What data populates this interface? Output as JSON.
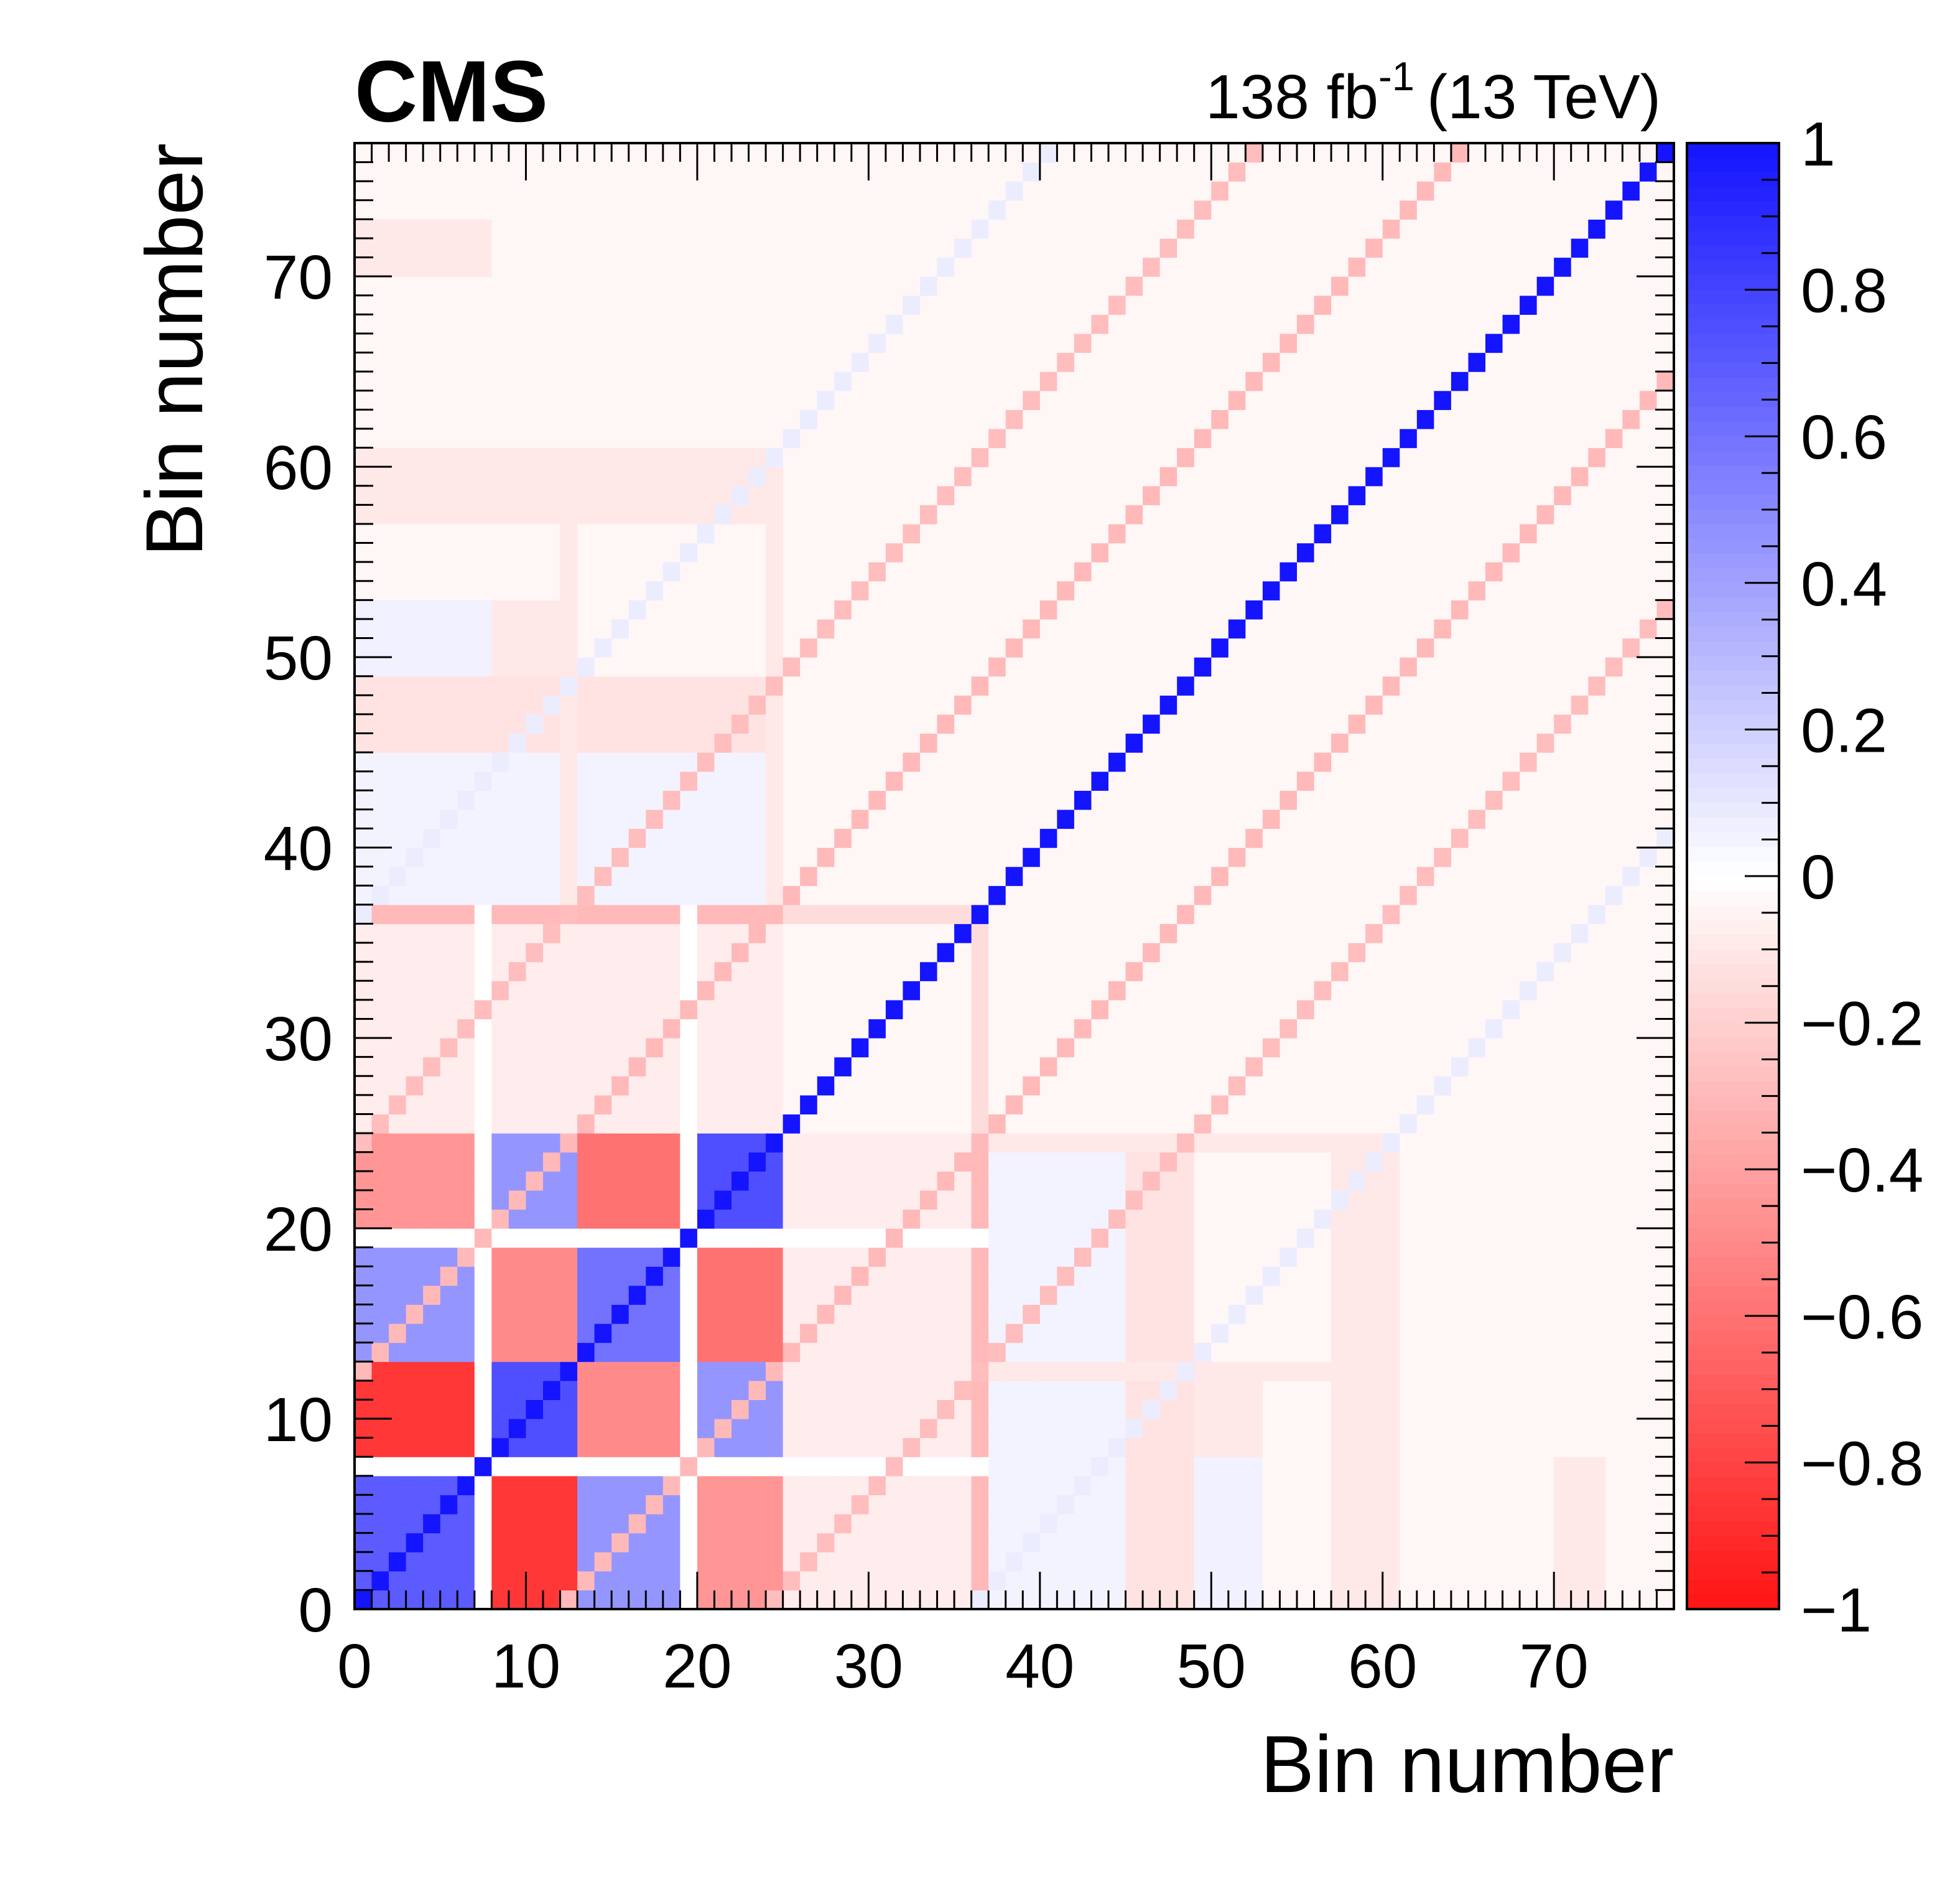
{
  "header": {
    "experiment": "CMS",
    "lumi_value": "138 fb",
    "lumi_exponent": "-1",
    "energy": "(13 TeV)"
  },
  "chart_data": {
    "type": "heatmap",
    "title": "",
    "xlabel": "Bin number",
    "ylabel": "Bin number",
    "xlim": [
      0,
      77
    ],
    "ylim": [
      0,
      77
    ],
    "nbins": 77,
    "x_ticks": [
      "0",
      "10",
      "20",
      "30",
      "40",
      "50",
      "60",
      "70"
    ],
    "y_ticks": [
      "0",
      "10",
      "20",
      "30",
      "40",
      "50",
      "60",
      "70"
    ],
    "zlim": [
      -1,
      1
    ],
    "colorbar_ticks": [
      "1",
      "0.8",
      "0.6",
      "0.4",
      "0.2",
      "0",
      "−0.2",
      "−0.4",
      "−0.6",
      "−0.8",
      "−1"
    ],
    "colorbar_tick_values": [
      1,
      0.8,
      0.6,
      0.4,
      0.2,
      0,
      -0.2,
      -0.4,
      -0.6,
      -0.8,
      -1
    ],
    "colors": {
      "positive": "#1414ff",
      "negative": "#ff1414",
      "zero": "#ffffff"
    },
    "description": "Symmetric correlation matrix; diagonal = 1; block structure in bins 0-36; anti-correlation stripes at |i-j| = 12 and 24.",
    "block_edges": [
      0,
      7,
      8,
      12,
      13,
      19,
      20,
      24,
      25,
      35,
      36,
      45,
      48,
      60,
      61,
      72,
      77
    ],
    "default_correlation": -0.04,
    "blocks": [
      {
        "x": [
          0,
          7
        ],
        "y": [
          0,
          7
        ],
        "value": 0.7
      },
      {
        "x": [
          8,
          12
        ],
        "y": [
          8,
          12
        ],
        "value": 0.75
      },
      {
        "x": [
          13,
          19
        ],
        "y": [
          13,
          19
        ],
        "value": 0.6
      },
      {
        "x": [
          20,
          24
        ],
        "y": [
          20,
          24
        ],
        "value": 0.75
      },
      {
        "x": [
          0,
          7
        ],
        "y": [
          8,
          12
        ],
        "value": -0.85
      },
      {
        "x": [
          0,
          7
        ],
        "y": [
          13,
          19
        ],
        "value": 0.45
      },
      {
        "x": [
          0,
          7
        ],
        "y": [
          20,
          24
        ],
        "value": -0.45
      },
      {
        "x": [
          8,
          12
        ],
        "y": [
          13,
          19
        ],
        "value": -0.5
      },
      {
        "x": [
          8,
          12
        ],
        "y": [
          20,
          24
        ],
        "value": 0.45
      },
      {
        "x": [
          13,
          19
        ],
        "y": [
          20,
          24
        ],
        "value": -0.6
      },
      {
        "x": [
          0,
          7
        ],
        "y": [
          25,
          35
        ],
        "value": 0.18
      },
      {
        "x": [
          8,
          12
        ],
        "y": [
          25,
          35
        ],
        "value": -0.2
      },
      {
        "x": [
          13,
          19
        ],
        "y": [
          25,
          35
        ],
        "value": 0.12
      },
      {
        "x": [
          20,
          24
        ],
        "y": [
          25,
          35
        ],
        "value": -0.22
      },
      {
        "x": [
          0,
          7
        ],
        "y": [
          36,
          36
        ],
        "value": -0.35
      },
      {
        "x": [
          8,
          12
        ],
        "y": [
          36,
          36
        ],
        "value": 0.4
      },
      {
        "x": [
          13,
          19
        ],
        "y": [
          36,
          36
        ],
        "value": -0.3
      },
      {
        "x": [
          20,
          24
        ],
        "y": [
          36,
          36
        ],
        "value": 0.2
      },
      {
        "x": [
          25,
          35
        ],
        "y": [
          36,
          36
        ],
        "value": -0.2
      },
      {
        "x": [
          0,
          7
        ],
        "y": [
          37,
          44
        ],
        "value": 0.1
      },
      {
        "x": [
          8,
          12
        ],
        "y": [
          37,
          44
        ],
        "value": -0.12
      },
      {
        "x": [
          13,
          19
        ],
        "y": [
          37,
          44
        ],
        "value": 0.1
      },
      {
        "x": [
          20,
          24
        ],
        "y": [
          37,
          44
        ],
        "value": -0.12
      },
      {
        "x": [
          0,
          7
        ],
        "y": [
          45,
          48
        ],
        "value": -0.16
      },
      {
        "x": [
          8,
          12
        ],
        "y": [
          45,
          48
        ],
        "value": 0.1
      },
      {
        "x": [
          13,
          19
        ],
        "y": [
          45,
          48
        ],
        "value": -0.14
      },
      {
        "x": [
          20,
          24
        ],
        "y": [
          45,
          48
        ],
        "value": 0.15
      },
      {
        "x": [
          0,
          7
        ],
        "y": [
          49,
          52
        ],
        "value": 0.06
      },
      {
        "x": [
          8,
          12
        ],
        "y": [
          49,
          52
        ],
        "value": -0.1
      },
      {
        "x": [
          0,
          7
        ],
        "y": [
          58,
          60
        ],
        "value": -0.12
      },
      {
        "x": [
          8,
          12
        ],
        "y": [
          58,
          60
        ],
        "value": 0.08
      },
      {
        "x": [
          13,
          19
        ],
        "y": [
          58,
          60
        ],
        "value": -0.1
      },
      {
        "x": [
          0,
          7
        ],
        "y": [
          70,
          72
        ],
        "value": -0.1
      },
      {
        "x": [
          25,
          35
        ],
        "y": [
          0,
          24
        ],
        "value": -0.08
      },
      {
        "x": [
          36,
          36
        ],
        "y": [
          0,
          24
        ],
        "value": -0.3
      },
      {
        "x": [
          36,
          36
        ],
        "y": [
          25,
          35
        ],
        "value": -0.15
      },
      {
        "x": [
          37,
          47
        ],
        "y": [
          0,
          24
        ],
        "value": 0.05
      },
      {
        "x": [
          45,
          48
        ],
        "y": [
          0,
          24
        ],
        "value": -0.12
      },
      {
        "x": [
          57,
          60
        ],
        "y": [
          0,
          24
        ],
        "value": -0.1
      },
      {
        "x": [
          37,
          60
        ],
        "y": [
          24,
          24
        ],
        "value": -0.1
      },
      {
        "x": [
          37,
          60
        ],
        "y": [
          12,
          12
        ],
        "value": -0.1
      }
    ],
    "diagonal_stripes": [
      {
        "offset": 0,
        "value": 1.0
      },
      {
        "offset": 12,
        "value": -0.3
      },
      {
        "offset": -12,
        "value": -0.3
      },
      {
        "offset": 24,
        "value": -0.28
      },
      {
        "offset": -24,
        "value": -0.28
      },
      {
        "offset": 36,
        "value": 0.08
      },
      {
        "offset": -36,
        "value": 0.08
      }
    ]
  }
}
